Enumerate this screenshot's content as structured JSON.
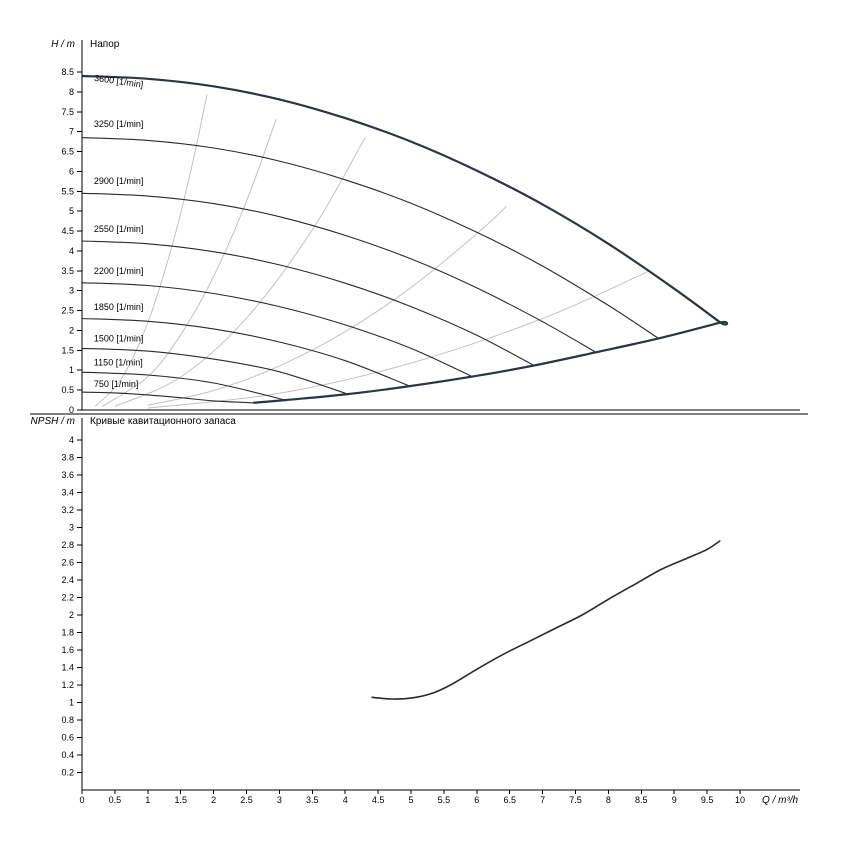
{
  "page": {
    "background": "#ffffff"
  },
  "chart_data": [
    {
      "type": "line",
      "name": "head-curves-panel",
      "title": "Напор",
      "y_axis_label": "H / m",
      "x_axis_label": "Q / m³/h",
      "xlim": [
        0,
        10
      ],
      "ylim": [
        0,
        8.5
      ],
      "grid": false,
      "legend": "none",
      "x_ticks": [
        0,
        0.5,
        1,
        1.5,
        2,
        2.5,
        3,
        3.5,
        4,
        4.5,
        5,
        5.5,
        6,
        6.5,
        7,
        7.5,
        8,
        8.5,
        9,
        9.5,
        10
      ],
      "y_ticks": [
        0,
        0.5,
        1,
        1.5,
        2,
        2.5,
        3,
        3.5,
        4,
        4.5,
        5,
        5.5,
        6,
        6.5,
        7,
        7.5,
        8,
        8.5
      ],
      "colors": {
        "curve": "#262b33",
        "envelope": "#2e3540",
        "efficiency": "#c2c2c2"
      },
      "speed_curves": [
        {
          "label": "3600 [1/min]",
          "label_pos": [
            0.18,
            8.28
          ],
          "label_rotate": 8,
          "points": [
            [
              0,
              8.4
            ],
            [
              1,
              8.33
            ],
            [
              2,
              8.14
            ],
            [
              3,
              7.81
            ],
            [
              4,
              7.34
            ],
            [
              5,
              6.75
            ],
            [
              6,
              6.02
            ],
            [
              7,
              5.17
            ],
            [
              8,
              4.18
            ],
            [
              9,
              3.05
            ],
            [
              9.7,
              2.2
            ]
          ]
        },
        {
          "label": "3250 [1/min]",
          "label_pos": [
            0.18,
            7.12
          ],
          "label_rotate": 0,
          "points": [
            [
              0,
              6.85
            ],
            [
              1,
              6.78
            ],
            [
              2,
              6.59
            ],
            [
              3,
              6.26
            ],
            [
              4,
              5.79
            ],
            [
              5,
              5.2
            ],
            [
              6,
              4.47
            ],
            [
              7,
              3.62
            ],
            [
              8,
              2.63
            ],
            [
              8.76,
              1.8
            ]
          ]
        },
        {
          "label": "2900 [1/min]",
          "label_pos": [
            0.18,
            5.68
          ],
          "label_rotate": 0,
          "points": [
            [
              0,
              5.45
            ],
            [
              1,
              5.38
            ],
            [
              2,
              5.19
            ],
            [
              3,
              4.86
            ],
            [
              4,
              4.39
            ],
            [
              5,
              3.8
            ],
            [
              6,
              3.07
            ],
            [
              7,
              2.22
            ],
            [
              7.81,
              1.45
            ]
          ]
        },
        {
          "label": "2550 [1/min]",
          "label_pos": [
            0.18,
            4.48
          ],
          "label_rotate": 0,
          "points": [
            [
              0,
              4.25
            ],
            [
              1,
              4.18
            ],
            [
              2,
              3.98
            ],
            [
              3,
              3.65
            ],
            [
              4,
              3.19
            ],
            [
              5,
              2.6
            ],
            [
              6,
              1.88
            ],
            [
              6.87,
              1.12
            ]
          ]
        },
        {
          "label": "2200 [1/min]",
          "label_pos": [
            0.18,
            3.42
          ],
          "label_rotate": 0,
          "points": [
            [
              0,
              3.2
            ],
            [
              1,
              3.13
            ],
            [
              2,
              2.93
            ],
            [
              3,
              2.6
            ],
            [
              4,
              2.14
            ],
            [
              5,
              1.55
            ],
            [
              5.93,
              0.84
            ]
          ]
        },
        {
          "label": "1850 [1/min]",
          "label_pos": [
            0.18,
            2.52
          ],
          "label_rotate": 0,
          "points": [
            [
              0,
              2.3
            ],
            [
              1,
              2.23
            ],
            [
              2,
              2.04
            ],
            [
              3,
              1.71
            ],
            [
              4,
              1.24
            ],
            [
              4.98,
              0.6
            ]
          ]
        },
        {
          "label": "1500 [1/min]",
          "label_pos": [
            0.18,
            1.72
          ],
          "label_rotate": 0,
          "points": [
            [
              0,
              1.55
            ],
            [
              1,
              1.48
            ],
            [
              2,
              1.28
            ],
            [
              3,
              0.96
            ],
            [
              4.04,
              0.4
            ]
          ]
        },
        {
          "label": "1150 [1/min]",
          "label_pos": [
            0.18,
            1.12
          ],
          "label_rotate": 0,
          "points": [
            [
              0,
              0.95
            ],
            [
              1,
              0.88
            ],
            [
              2,
              0.68
            ],
            [
              3.09,
              0.25
            ]
          ]
        },
        {
          "label": "750 [1/min]",
          "label_pos": [
            0.18,
            0.58
          ],
          "label_rotate": 0,
          "points": [
            [
              0,
              0.45
            ],
            [
              0.5,
              0.43
            ],
            [
              1,
              0.38
            ],
            [
              1.5,
              0.31
            ],
            [
              2,
              0.23
            ],
            [
              2.6,
              0.18
            ]
          ]
        }
      ],
      "envelope_lower_points": [
        [
          9.7,
          2.2
        ],
        [
          8.76,
          1.8
        ],
        [
          7.81,
          1.45
        ],
        [
          6.87,
          1.12
        ],
        [
          5.93,
          0.84
        ],
        [
          4.98,
          0.6
        ],
        [
          4.04,
          0.4
        ],
        [
          3.09,
          0.25
        ],
        [
          2.6,
          0.18
        ]
      ],
      "efficiency_lines": [
        [
          [
            0.2,
            0.09
          ],
          [
            0.6,
            0.79
          ],
          [
            1,
            2.2
          ],
          [
            1.4,
            4.31
          ],
          [
            1.7,
            6.36
          ],
          [
            1.9,
            7.94
          ]
        ],
        [
          [
            0.3,
            0.08
          ],
          [
            1,
            0.84
          ],
          [
            1.5,
            1.89
          ],
          [
            2,
            3.36
          ],
          [
            2.5,
            5.25
          ],
          [
            2.95,
            7.31
          ]
        ],
        [
          [
            0.5,
            0.09
          ],
          [
            1.5,
            0.83
          ],
          [
            2.5,
            2.31
          ],
          [
            3.5,
            4.53
          ],
          [
            4.3,
            6.84
          ]
        ],
        [
          [
            1,
            0.12
          ],
          [
            2,
            0.49
          ],
          [
            3,
            1.11
          ],
          [
            4,
            1.97
          ],
          [
            5,
            3.08
          ],
          [
            6,
            4.43
          ],
          [
            6.45,
            5.12
          ]
        ],
        [
          [
            1,
            0.05
          ],
          [
            3,
            0.42
          ],
          [
            5,
            1.18
          ],
          [
            7,
            2.3
          ],
          [
            8.6,
            3.48
          ]
        ]
      ]
    },
    {
      "type": "line",
      "name": "npsh-panel",
      "title": "Кривые кавитационного запаса",
      "y_axis_label": "NPSH / m",
      "x_axis_label": "Q / m³/h",
      "xlim": [
        0,
        10
      ],
      "ylim": [
        0,
        4
      ],
      "grid": false,
      "legend": "none",
      "y_ticks": [
        0.2,
        0.4,
        0.6,
        0.8,
        1,
        1.2,
        1.4,
        1.6,
        1.8,
        2,
        2.2,
        2.4,
        2.6,
        2.8,
        3,
        3.2,
        3.4,
        3.6,
        3.8,
        4
      ],
      "color": "#262b33",
      "curve_points": [
        [
          4.4,
          1.06
        ],
        [
          4.7,
          1.04
        ],
        [
          5,
          1.05
        ],
        [
          5.3,
          1.1
        ],
        [
          5.6,
          1.2
        ],
        [
          6,
          1.38
        ],
        [
          6.4,
          1.55
        ],
        [
          6.8,
          1.7
        ],
        [
          7.2,
          1.85
        ],
        [
          7.6,
          2.0
        ],
        [
          8,
          2.18
        ],
        [
          8.4,
          2.35
        ],
        [
          8.8,
          2.52
        ],
        [
          9.2,
          2.65
        ],
        [
          9.5,
          2.75
        ],
        [
          9.7,
          2.85
        ]
      ]
    }
  ]
}
